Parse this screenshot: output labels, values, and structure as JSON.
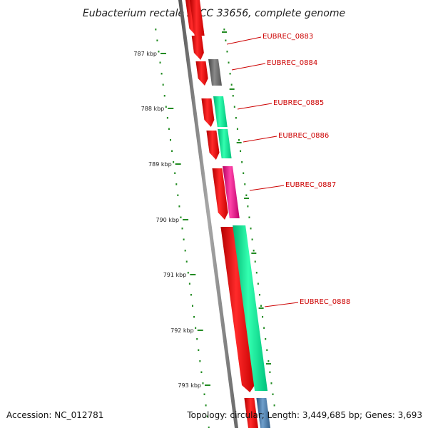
{
  "title": "Eubacterium rectale ATCC 33656, complete genome",
  "accession": "Accession: NC_012781",
  "topology": "Topology: circular; Length: 3,449,685 bp; Genes: 3,693",
  "colors": {
    "backbone": "#808080",
    "tick": "#228b22",
    "label": "#cc0000",
    "forward_gene": "#ff0000",
    "cds_green": "#00ee99",
    "cds_gray": "#666666",
    "cds_magenta": "#ee1188",
    "cds_blue": "#4477aa"
  },
  "scale_ticks": [
    "787 kbp",
    "788 kbp",
    "789 kbp",
    "790 kbp",
    "791 kbp",
    "792 kbp",
    "793 kbp"
  ],
  "gene_labels": [
    "EUBREC_0883",
    "EUBREC_0884",
    "EUBREC_0885",
    "EUBREC_0886",
    "EUBREC_0887",
    "EUBREC_0888"
  ]
}
